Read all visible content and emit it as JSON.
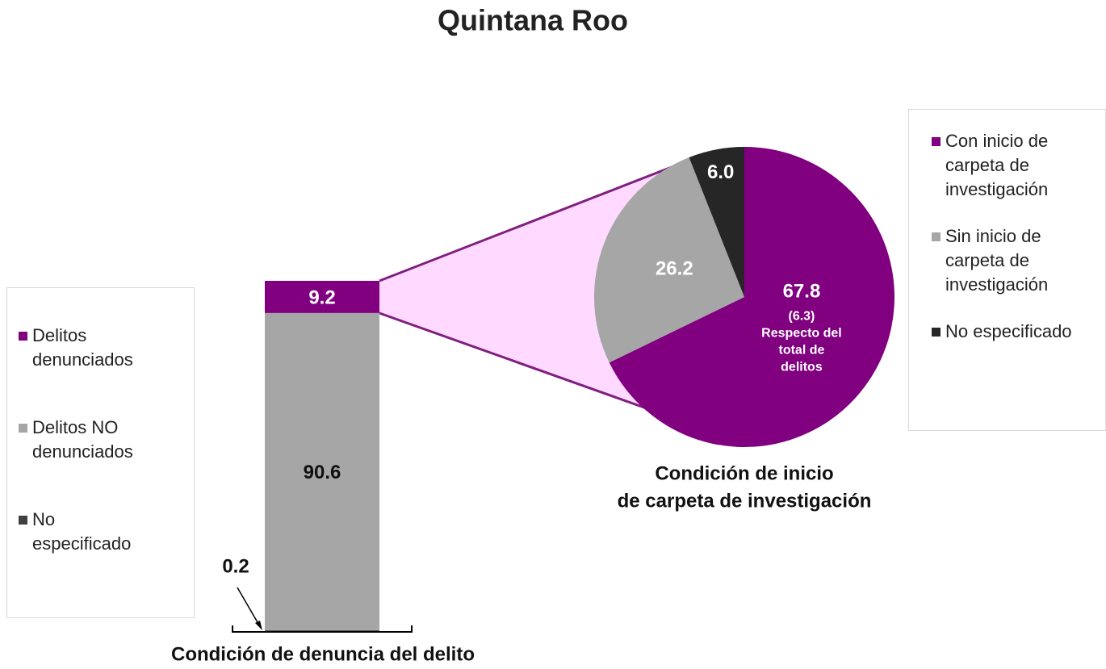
{
  "title": "Quintana Roo",
  "chart_data": [
    {
      "type": "stacked-bar",
      "title": "Condición de denuncia del delito",
      "series": [
        {
          "name": "Delitos denunciados",
          "color": "#800080",
          "values": [
            9.2
          ]
        },
        {
          "name": "Delitos NO denunciados",
          "color": "#a6a6a6",
          "values": [
            90.6
          ]
        },
        {
          "name": "No especificado",
          "color": "#404040",
          "values": [
            0.2
          ]
        }
      ]
    },
    {
      "type": "pie",
      "title": [
        "Condición de inicio",
        "de carpeta de investigación"
      ],
      "categories": [
        "Con inicio de carpeta de investigación",
        "Sin inicio de carpeta de investigación",
        "No especificado"
      ],
      "values": [
        67.8,
        26.2,
        6.0
      ],
      "value_labels": [
        "67.8",
        "26.2",
        "6.0"
      ],
      "colors": [
        "#800080",
        "#a6a6a6",
        "#262626"
      ],
      "annotation": [
        "(6.3)",
        "Respecto del",
        "total de",
        "delitos"
      ]
    }
  ]
}
